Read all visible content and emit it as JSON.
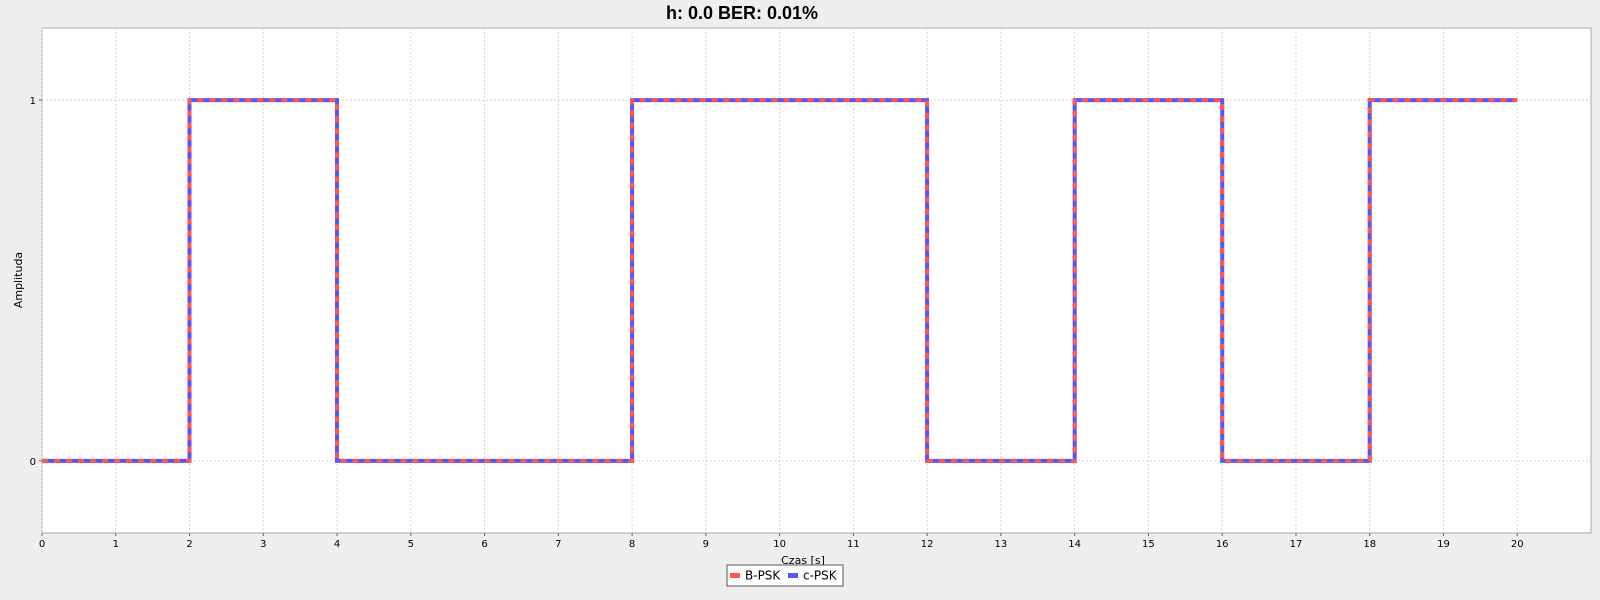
{
  "chart_data": {
    "type": "line",
    "title": "h: 0.0 BER: 0.01%",
    "xlabel": "Czas [s]",
    "ylabel": "Amplituda",
    "xlim": [
      0,
      21
    ],
    "ylim": [
      -0.2,
      1.2
    ],
    "x_ticks": [
      0,
      1,
      2,
      3,
      4,
      5,
      6,
      7,
      8,
      9,
      10,
      11,
      12,
      13,
      14,
      15,
      16,
      17,
      18,
      19,
      20
    ],
    "y_ticks": [
      0,
      1
    ],
    "grid": true,
    "legend_position": "bottom-center",
    "step": true,
    "series": [
      {
        "name": "B-PSK",
        "color": "#ff5555",
        "style": "dashed",
        "x": [
          0,
          2,
          2,
          4,
          4,
          8,
          8,
          12,
          12,
          14,
          14,
          16,
          16,
          18,
          18,
          20
        ],
        "y": [
          0,
          0,
          1,
          1,
          0,
          0,
          1,
          1,
          0,
          0,
          1,
          1,
          0,
          0,
          1,
          1
        ]
      },
      {
        "name": "c-PSK",
        "color": "#5555ff",
        "style": "solid",
        "x": [
          0,
          2,
          2,
          4,
          4,
          8,
          8,
          12,
          12,
          14,
          14,
          16,
          16,
          18,
          18,
          20
        ],
        "y": [
          0,
          0,
          1,
          1,
          0,
          0,
          1,
          1,
          0,
          0,
          1,
          1,
          0,
          0,
          1,
          1
        ]
      }
    ]
  }
}
